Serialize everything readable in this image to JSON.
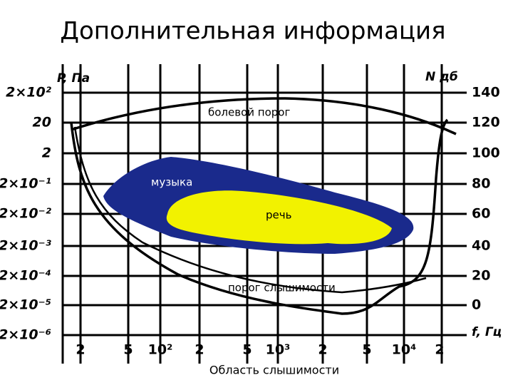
{
  "title": "Дополнительная информация",
  "left_axis": {
    "title": "P, Па",
    "labels": [
      "2×10²",
      "20",
      "2",
      "2×10⁻¹",
      "2×10⁻²",
      "2×10⁻³",
      "2×10⁻⁴",
      "2×10⁻⁵",
      "2×10⁻⁶"
    ]
  },
  "right_axis": {
    "title": "N дб",
    "labels": [
      "140",
      "120",
      "100",
      "80",
      "60",
      "40",
      "20",
      "0"
    ]
  },
  "bottom_axis": {
    "title": "f, Гц",
    "labels": [
      "2",
      "5",
      "10²",
      "2",
      "5",
      "10³",
      "2",
      "5",
      "10⁴",
      "2"
    ],
    "caption": "Область слышимости"
  },
  "regions": {
    "pain": "болевой порог",
    "music": "музыка",
    "speech": "речь",
    "hearing": "порог слышимости"
  }
}
